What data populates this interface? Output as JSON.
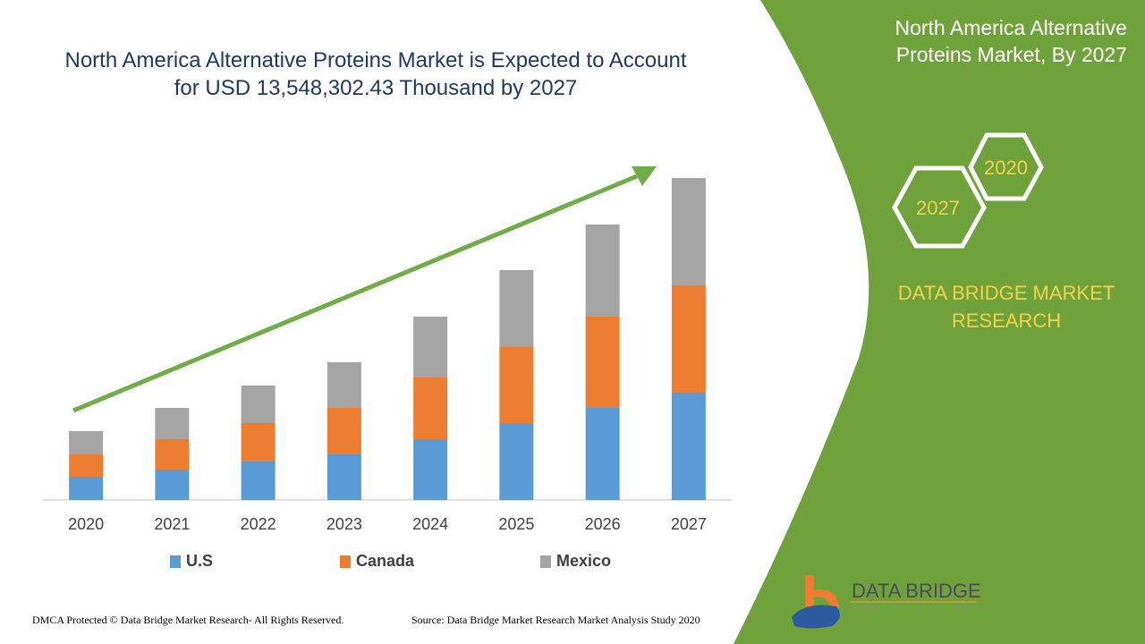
{
  "title": "North America Alternative Proteins Market is Expected to Account for USD 13,548,302.43 Thousand by 2027",
  "side_panel": {
    "title": "North America Alternative Proteins Market, By 2027",
    "hex_labels": [
      "2020",
      "2027"
    ],
    "brand": "DATA BRIDGE MARKET RESEARCH",
    "logo_text": "DATA BRIDGE",
    "logo_subtext": "MARKET RESEARCH",
    "color": "#70a23c"
  },
  "footer": {
    "left": "DMCA Protected © Data Bridge Market Research- All Rights Reserved.",
    "right": "Source: Data Bridge Market Research Market Analysis Study 2020"
  },
  "chart_data": {
    "type": "bar",
    "stacked": true,
    "title": "North America Alternative Proteins Market is Expected to Account for USD 13,548,302.43 Thousand by 2027",
    "categories": [
      "2020",
      "2021",
      "2022",
      "2023",
      "2024",
      "2025",
      "2026",
      "2027"
    ],
    "series": [
      {
        "name": "U.S",
        "color": "#5b9bd5",
        "values": [
          26,
          34,
          43,
          51,
          68,
          86,
          103,
          120
        ]
      },
      {
        "name": "Canada",
        "color": "#ed7d31",
        "values": [
          25,
          34,
          43,
          52,
          69,
          85,
          102,
          120
        ]
      },
      {
        "name": "Mexico",
        "color": "#a5a5a5",
        "values": [
          26,
          35,
          42,
          51,
          68,
          86,
          103,
          120
        ]
      }
    ],
    "ylim": [
      0,
      370
    ],
    "y_axis_visible": false,
    "grid": false,
    "legend": "bottom",
    "trend_arrow_color": "#70ad47"
  }
}
